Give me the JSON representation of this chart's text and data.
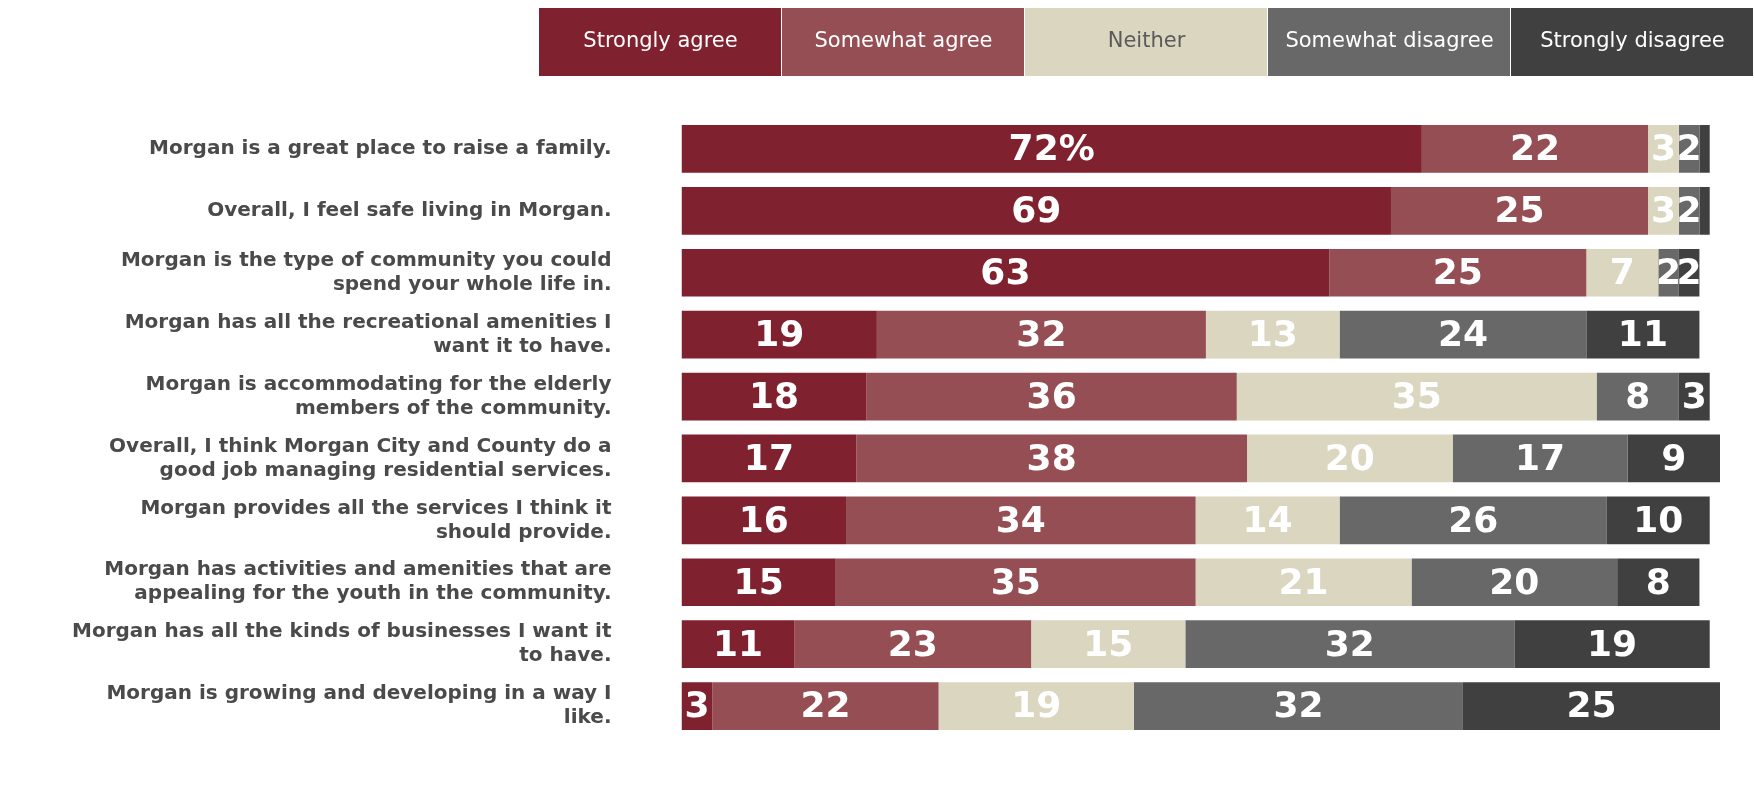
{
  "chart_data": {
    "type": "bar",
    "orientation": "horizontal",
    "stacked": true,
    "legend": "top right",
    "data_labels": true,
    "categories": [
      "Morgan is a great place to raise a family.",
      "Overall, I feel safe living in Morgan.",
      "Morgan is the type of community you could spend your whole life in.",
      "Morgan has all the recreational amenities I want it to have.",
      "Morgan is accommodating for the elderly members of the community.",
      "Overall, I think Morgan City and County do a good job managing residential services.",
      "Morgan provides all the services I think it should provide.",
      "Morgan has activities and amenities that are appealing for the youth in the community.",
      "Morgan has all the kinds of businesses I want it to have.",
      "Morgan is growing and developing in a way I like."
    ],
    "series": [
      {
        "name": "Strongly agree",
        "color": "#7f212e",
        "values": [
          72,
          69,
          63,
          19,
          18,
          17,
          16,
          15,
          11,
          3
        ],
        "value_labels": [
          "72%",
          "69",
          "63",
          "19",
          "18",
          "17",
          "16",
          "15",
          "11",
          "3"
        ]
      },
      {
        "name": "Somewhat agree",
        "color": "#954e53",
        "values": [
          22,
          25,
          25,
          32,
          36,
          38,
          34,
          35,
          23,
          22
        ],
        "value_labels": [
          "22",
          "25",
          "25",
          "32",
          "36",
          "38",
          "34",
          "35",
          "23",
          "22"
        ]
      },
      {
        "name": "Neither",
        "color": "#dad6c0",
        "values": [
          3,
          3,
          7,
          13,
          35,
          20,
          14,
          21,
          15,
          19
        ],
        "value_labels": [
          "3",
          "3",
          "7",
          "13",
          "35",
          "20",
          "14",
          "21",
          "15",
          "19"
        ]
      },
      {
        "name": "Somewhat disagree",
        "color": "#686868",
        "values": [
          2,
          2,
          2,
          24,
          8,
          17,
          26,
          20,
          32,
          32
        ],
        "value_labels": [
          "2",
          "2",
          "2",
          "24",
          "8",
          "17",
          "26",
          "20",
          "32",
          "32"
        ]
      },
      {
        "name": "Strongly disagree",
        "color": "#404040",
        "values": [
          1,
          1,
          2,
          11,
          3,
          9,
          10,
          8,
          19,
          25
        ],
        "value_labels": [
          null,
          null,
          "2",
          "11",
          "3",
          "9",
          "10",
          "8",
          "19",
          "25"
        ]
      }
    ]
  }
}
